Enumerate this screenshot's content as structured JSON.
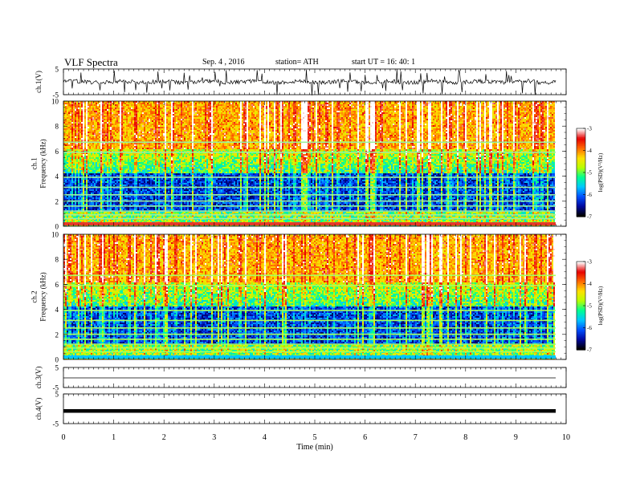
{
  "header": {
    "title": "VLF  Spectra",
    "date": "Sep. 4  , 2016",
    "station": "station= ATH",
    "start": "start  UT  =    16: 40: 1"
  },
  "chart_data": [
    {
      "type": "line",
      "panel": "ch1-waveform",
      "ylabel": "ch.1(V)",
      "ylim": [
        -5,
        5
      ],
      "yticks": [
        "5",
        "-5"
      ],
      "xlim": [
        0,
        10
      ]
    },
    {
      "type": "heatmap",
      "panel": "ch1-spectrogram",
      "ylabel": "ch.1\nFrequency (kHz)",
      "ylim": [
        0,
        10
      ],
      "yticks": [
        "0",
        "2",
        "4",
        "6",
        "8",
        "10"
      ],
      "xlim": [
        0,
        10
      ],
      "colorbar": {
        "label": "log(PSD)(V²/Hz)",
        "range": [
          -7,
          -3
        ],
        "ticks": [
          "-3",
          "-4",
          "-5",
          "-6",
          "-7"
        ]
      }
    },
    {
      "type": "heatmap",
      "panel": "ch2-spectrogram",
      "ylabel": "ch.2\nFrequency (kHz)",
      "ylim": [
        0,
        10
      ],
      "yticks": [
        "0",
        "2",
        "4",
        "6",
        "8",
        "10"
      ],
      "xlim": [
        0,
        10
      ],
      "colorbar": {
        "label": "log(PSD)(V²/Hz)",
        "range": [
          -7,
          -3
        ],
        "ticks": [
          "-3",
          "-4",
          "-5",
          "-6",
          "-7"
        ]
      }
    },
    {
      "type": "line",
      "panel": "ch3-waveform",
      "ylabel": "ch.3(V)",
      "ylim": [
        -5,
        5
      ],
      "yticks": [
        "5",
        "-5"
      ],
      "xlim": [
        0,
        10
      ]
    },
    {
      "type": "line",
      "panel": "ch4-waveform",
      "ylabel": "ch.4(V)",
      "ylim": [
        -5,
        5
      ],
      "yticks": [
        "5",
        "-5"
      ],
      "xlim": [
        0,
        10
      ],
      "xlabel": "Time  (min)",
      "xticks": [
        "0",
        "1",
        "2",
        "3",
        "4",
        "5",
        "6",
        "7",
        "8",
        "9",
        "10"
      ]
    }
  ],
  "colors": {
    "cmap": [
      "#000000",
      "#0008a0",
      "#0050ff",
      "#00c8ff",
      "#00ff90",
      "#b8ff00",
      "#ffe000",
      "#ff6a00",
      "#e60000",
      "#ffffff"
    ]
  }
}
